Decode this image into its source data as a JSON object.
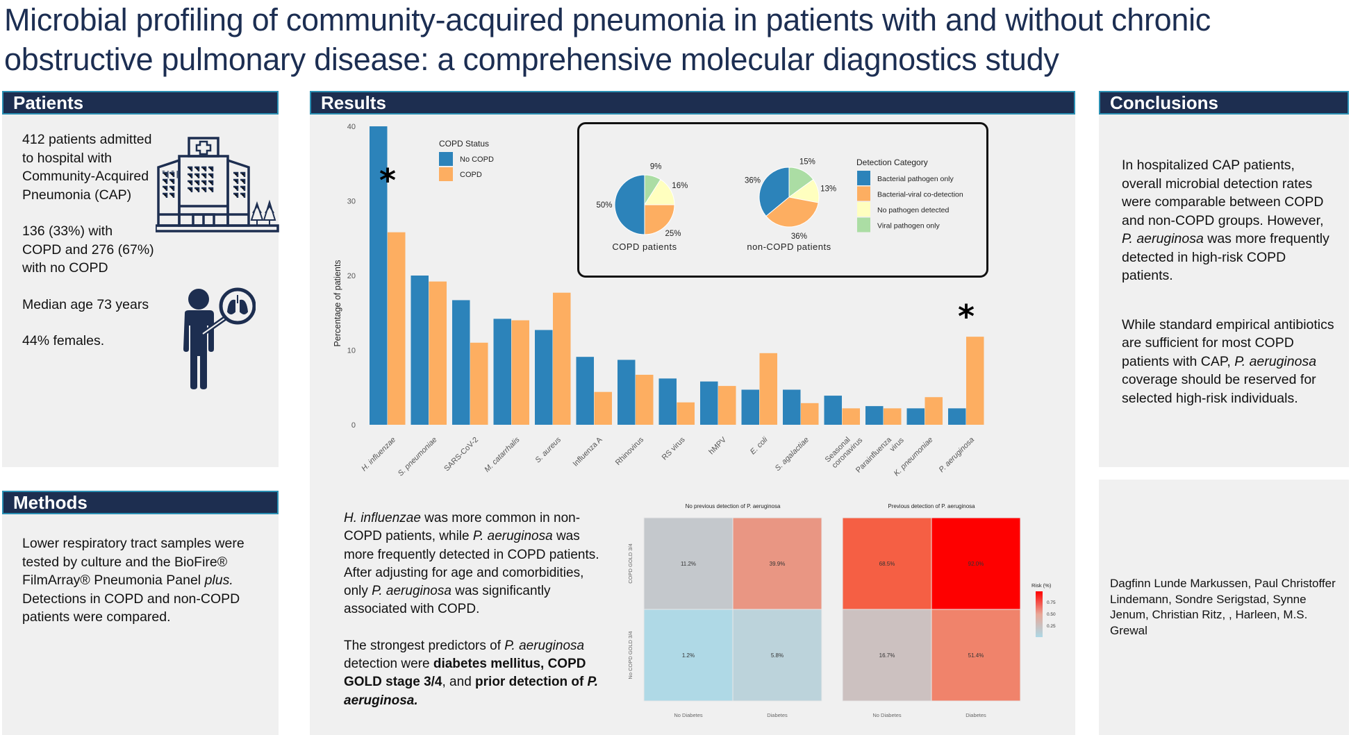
{
  "title": "Microbial profiling of community-acquired pneumonia in patients with and without chronic obstructive pulmonary disease: a comprehensive molecular diagnostics study",
  "colors": {
    "header_bg": "#1d2e50",
    "header_border": "#2a8fb3",
    "panel_bg": "#f0f0f0",
    "no_copd": "#2c83ba",
    "copd": "#fdae61",
    "icon": "#1d2e50"
  },
  "patients": {
    "header": "Patients",
    "paragraphs": [
      "412 patients admitted to hospital with Community-Acquired Pneumonia (CAP)",
      "136 (33%) with COPD and 276 (67%) with no COPD",
      "Median age 73 years",
      "44% females."
    ],
    "icons": [
      "hospital-icon",
      "patient-lungs-icon"
    ]
  },
  "methods": {
    "header": "Methods",
    "text_1": "Lower respiratory tract samples were tested by culture and the BioFire® FilmArray® Pneumonia Panel ",
    "text_italic": "plus.",
    "text_2": " Detections in COPD and non-COPD patients were compared."
  },
  "results": {
    "header": "Results",
    "summary1": {
      "p1_i": "H. influenzae",
      "p1_a": " was more common in non-COPD patients, while ",
      "p1_i2": "P. aeruginosa",
      "p1_b": " was more frequently detected in COPD patients. After adjusting for age and comorbidities, only ",
      "p1_i3": "P. aeruginosa",
      "p1_c": " was significantly associated with COPD."
    },
    "summary2": {
      "a": "The strongest predictors of ",
      "i1": "P. aeruginosa",
      "b": " detection were ",
      "bold1": "diabetes mellitus, COPD GOLD stage 3/4",
      "c": ", and ",
      "bold2": "prior detection of ",
      "bold_i": "P. aeruginosa."
    }
  },
  "conclusions": {
    "header": "Conclusions",
    "p1": "In hospitalized CAP patients, overall microbial detection rates were comparable between COPD and non-COPD groups. However, ",
    "p1_i": "P. aeruginosa",
    "p1_b": " was more frequently detected in high-risk COPD patients.",
    "p2_a": "While standard empirical antibiotics are sufficient for most COPD patients with CAP, ",
    "p2_i": "P. aeruginosa",
    "p2_b": " coverage should be reserved for selected high-risk individuals."
  },
  "authors": "Dagfinn Lunde Markussen, Paul Christoffer Lindemann, Sondre Serigstad, Synne Jenum, Christian Ritz, , Harleen, M.S. Grewal",
  "chart_data": [
    {
      "type": "bar",
      "title": "",
      "xlabel": "",
      "ylabel": "Percentage of patients",
      "ylim": [
        0,
        40
      ],
      "yticks": [
        0,
        10,
        20,
        30,
        40
      ],
      "grid": false,
      "legend": {
        "title": "COPD Status",
        "placement": "top-left"
      },
      "categories": [
        "H. influenzae",
        "S. pneumoniae",
        "SARS-CoV-2",
        "M. catarrhalis",
        "S. aureus",
        "Influenza A",
        "Rhinovirus",
        "RS virus",
        "hMPV",
        "E. coli",
        "S. agalactiae",
        "Seasonal coronavirus",
        "Parainfluenza virus",
        "K. pneumoniae",
        "P. aeruginosa"
      ],
      "italic_categories": [
        true,
        true,
        false,
        true,
        true,
        false,
        false,
        false,
        false,
        true,
        true,
        false,
        false,
        true,
        true
      ],
      "series": [
        {
          "name": "No COPD",
          "color": "#2c83ba",
          "values": [
            40.0,
            20.0,
            16.7,
            14.2,
            12.7,
            9.1,
            8.7,
            6.2,
            5.8,
            4.7,
            4.7,
            3.9,
            2.5,
            2.2,
            2.2
          ]
        },
        {
          "name": "COPD",
          "color": "#fdae61",
          "values": [
            25.8,
            19.2,
            11.0,
            14.0,
            17.7,
            4.4,
            6.7,
            3.0,
            5.2,
            9.6,
            2.9,
            2.2,
            2.2,
            3.7,
            11.8
          ]
        }
      ],
      "annotations": [
        {
          "category": "H. influenzae",
          "text": "*"
        },
        {
          "category": "P. aeruginosa",
          "text": "*"
        }
      ]
    },
    {
      "type": "pie",
      "title": "COPD patients",
      "legend": {
        "title": "Detection Category",
        "placement": "right"
      },
      "categories": [
        "Bacterial pathogen only",
        "Bacterial-viral co-detection",
        "No pathogen detected",
        "Viral pathogen only"
      ],
      "colors": [
        "#2c83ba",
        "#fdae61",
        "#ffffbf",
        "#abdda4"
      ],
      "values": [
        50,
        25,
        16,
        9
      ]
    },
    {
      "type": "pie",
      "title": "non-COPD patients",
      "categories": [
        "Bacterial pathogen only",
        "Bacterial-viral co-detection",
        "No pathogen detected",
        "Viral pathogen only"
      ],
      "colors": [
        "#2c83ba",
        "#fdae61",
        "#ffffbf",
        "#abdda4"
      ],
      "values": [
        36,
        36,
        13,
        15
      ]
    },
    {
      "type": "heatmap",
      "title": "No previous detection of P. aeruginosa",
      "x": [
        "No Diabetes",
        "Diabetes"
      ],
      "y": [
        "COPD GOLD 3/4",
        "No COPD GOLD 3/4"
      ],
      "values": [
        [
          11.2,
          39.9
        ],
        [
          1.2,
          5.8
        ]
      ],
      "labels": [
        [
          "11.2%",
          "39.9%"
        ],
        [
          "1.2%",
          "5.8%"
        ]
      ],
      "colors": [
        [
          "#c4c8cc",
          "#e99683"
        ],
        [
          "#afd9e6",
          "#bcd3db"
        ]
      ]
    },
    {
      "type": "heatmap",
      "title": "Previous detection of P. aeruginosa",
      "x": [
        "No Diabetes",
        "Diabetes"
      ],
      "y": [
        "COPD GOLD 3/4",
        "No COPD GOLD 3/4"
      ],
      "values": [
        [
          68.5,
          92.0
        ],
        [
          16.7,
          51.4
        ]
      ],
      "labels": [
        [
          "68.5%",
          "92.0%"
        ],
        [
          "16.7%",
          "51.4%"
        ]
      ],
      "colors": [
        [
          "#f55f44",
          "#fe0000"
        ],
        [
          "#ccc1c0",
          "#f0836b"
        ]
      ],
      "legend": {
        "title": "Risk (%)",
        "ticks": [
          "0.75",
          "0.50",
          "0.25"
        ],
        "range": [
          0,
          1
        ],
        "placement": "right"
      }
    }
  ]
}
